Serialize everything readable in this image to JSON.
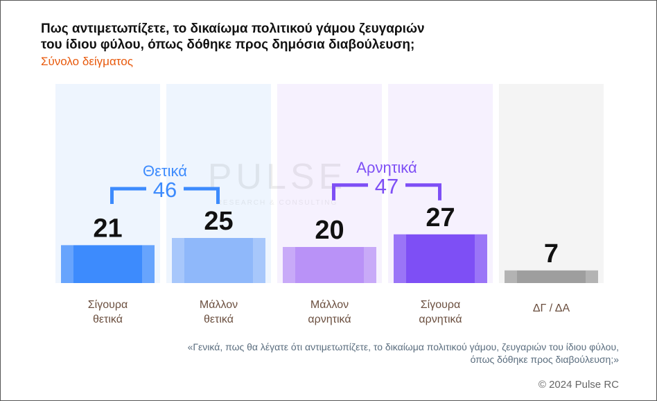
{
  "title": {
    "line1": "Πως αντιμετωπίζετε, το δικαίωμα πολιτικού γάμου ζευγαριών",
    "line2": "του ίδιου φύλου, όπως δόθηκε προς δημόσια διαβούλευση;"
  },
  "subtitle": "Σύνολο δείγματος",
  "chart_data": {
    "type": "bar",
    "categories": [
      [
        "Σίγουρα",
        "θετικά"
      ],
      [
        "Μάλλον",
        "θετικά"
      ],
      [
        "Μάλλον",
        "αρνητικά"
      ],
      [
        "Σίγουρα",
        "αρνητικά"
      ],
      [
        "ΔΓ / ΔΑ"
      ]
    ],
    "values": [
      21,
      25,
      20,
      27,
      7
    ],
    "colors": [
      "#3d8bfd",
      "#8fb8fa",
      "#b992f7",
      "#7e4ff5",
      "#9e9e9e"
    ],
    "column_backgrounds": [
      "#eef5fe",
      "#eef5fe",
      "#f6f1fe",
      "#f6f1fe",
      "#f4f4f4"
    ],
    "groups": [
      {
        "label": "Θετικά",
        "total": "46",
        "color": "#3d8bfd",
        "span": [
          0,
          1
        ]
      },
      {
        "label": "Αρνητικά",
        "total": "47",
        "color": "#7e4ff5",
        "span": [
          2,
          3
        ]
      }
    ],
    "ylim": [
      0,
      100
    ],
    "grid": false,
    "legend": "none"
  },
  "watermark": {
    "main": "PULSE",
    "sub": "RESEARCH & CONSULTING"
  },
  "note": {
    "line1": "«Γενικά, πως θα λέγατε ότι αντιμετωπίζετε, το δικαίωμα πολιτικού γάμου, ζευγαριών του ίδιου φύλου,",
    "line2": "όπως δόθηκε προς διαβούλευση;»"
  },
  "copyright": "© 2024 Pulse RC"
}
